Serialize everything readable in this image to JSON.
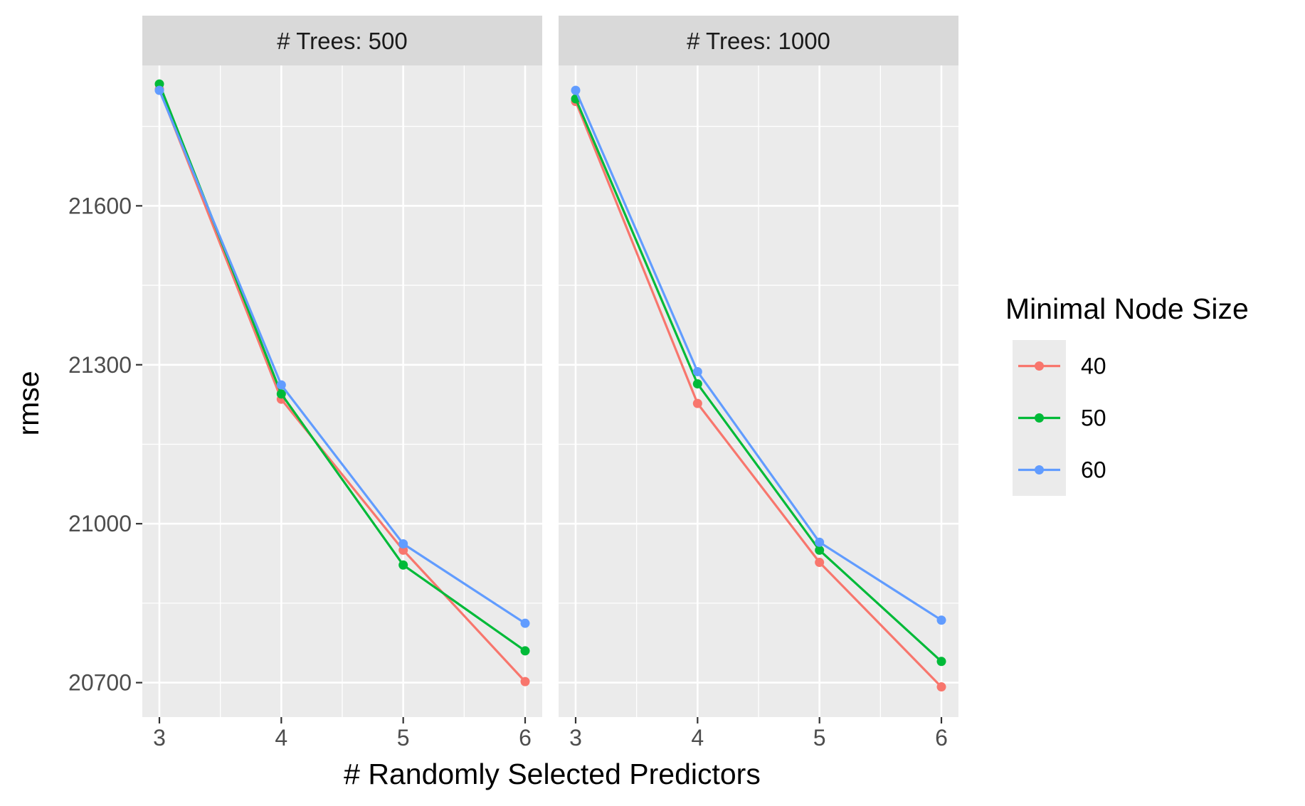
{
  "chart_data": {
    "type": "line",
    "xlabel": "# Randomly Selected Predictors",
    "ylabel": "rmse",
    "x": [
      3,
      4,
      5,
      6
    ],
    "x_ticks": [
      "3",
      "4",
      "5",
      "6"
    ],
    "xlim": [
      2.86,
      6.14
    ],
    "ylim": [
      20635,
      21865
    ],
    "y_ticks": [
      "20700",
      "21000",
      "21300",
      "21600"
    ],
    "y_tick_values": [
      20700,
      21000,
      21300,
      21600
    ],
    "y_minor_grid": [
      20850,
      21150,
      21450,
      21750
    ],
    "x_minor_grid": [
      3.5,
      4.5,
      5.5
    ],
    "grid": true,
    "legend": {
      "title": "Minimal Node Size",
      "position": "right",
      "entries": [
        "40",
        "50",
        "60"
      ]
    },
    "panels": [
      {
        "strip_label": "# Trees: 500",
        "series": [
          {
            "name": "40",
            "color": "#F8766D",
            "values": [
              21820,
              21235,
              20950,
              20702
            ]
          },
          {
            "name": "50",
            "color": "#00BA38",
            "values": [
              21830,
              21245,
              20922,
              20760
            ]
          },
          {
            "name": "60",
            "color": "#619CFF",
            "values": [
              21818,
              21262,
              20962,
              20812
            ]
          }
        ]
      },
      {
        "strip_label": "# Trees: 1000",
        "series": [
          {
            "name": "40",
            "color": "#F8766D",
            "values": [
              21797,
              21227,
              20927,
              20692
            ]
          },
          {
            "name": "50",
            "color": "#00BA38",
            "values": [
              21802,
              21264,
              20950,
              20740
            ]
          },
          {
            "name": "60",
            "color": "#619CFF",
            "values": [
              21818,
              21287,
              20965,
              20818
            ]
          }
        ]
      }
    ]
  },
  "colors": {
    "panel_bg": "#EBEBEB",
    "strip_bg": "#D9D9D9",
    "grid": "#FFFFFF"
  }
}
